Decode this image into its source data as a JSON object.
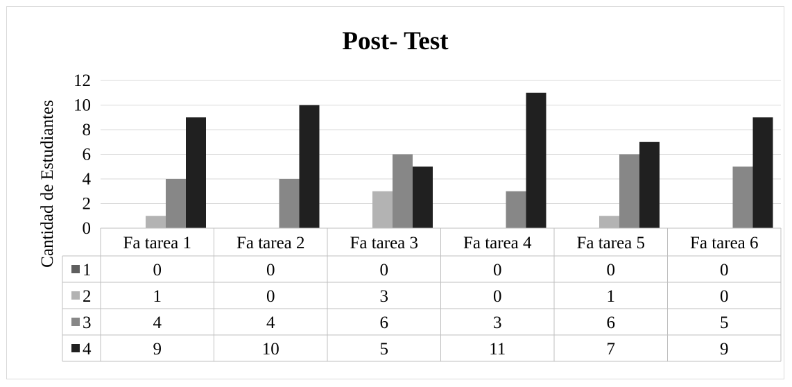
{
  "chart_data": {
    "type": "bar",
    "title": "Post- Test",
    "ylabel": "Cantidad de Estudiantes",
    "xlabel": "",
    "ylim": [
      0,
      12
    ],
    "yticks": [
      0,
      2,
      4,
      6,
      8,
      10,
      12
    ],
    "grid": true,
    "legend": "data-table",
    "categories": [
      "Fa tarea 1",
      "Fa tarea 2",
      "Fa tarea 3",
      "Fa tarea 4",
      "Fa tarea 5",
      "Fa tarea 6"
    ],
    "series": [
      {
        "name": "1",
        "color": "#5f5f5f",
        "values": [
          0,
          0,
          0,
          0,
          0,
          0
        ]
      },
      {
        "name": "2",
        "color": "#b3b3b3",
        "values": [
          1,
          0,
          3,
          0,
          1,
          0
        ]
      },
      {
        "name": "3",
        "color": "#878787",
        "values": [
          4,
          4,
          6,
          3,
          6,
          5
        ]
      },
      {
        "name": "4",
        "color": "#202020",
        "values": [
          9,
          10,
          5,
          11,
          7,
          9
        ]
      }
    ]
  }
}
